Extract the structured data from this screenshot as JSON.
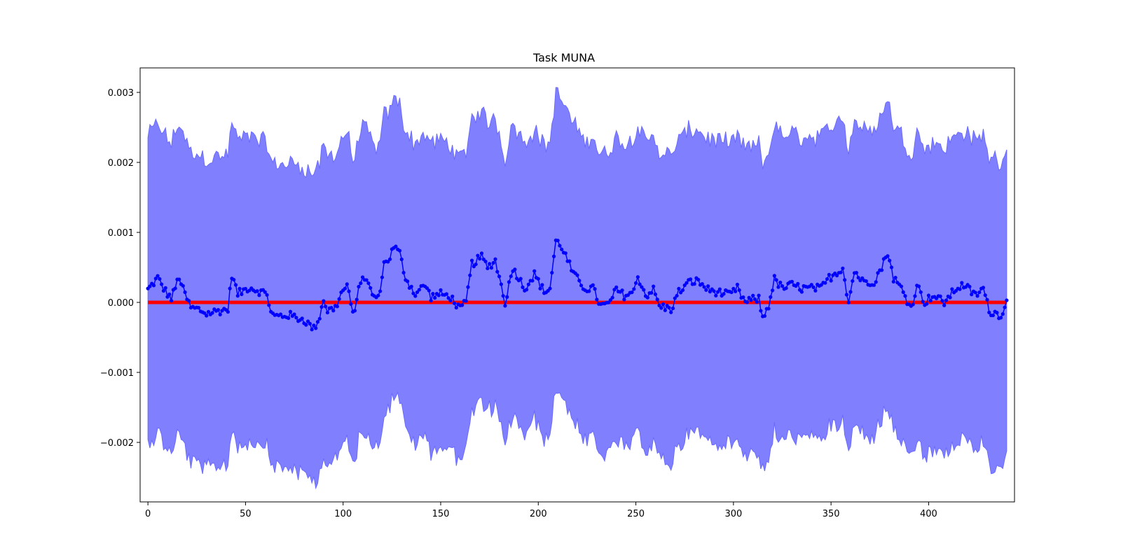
{
  "chart_data": {
    "type": "line",
    "title": "Task MUNA",
    "xlabel": "",
    "ylabel": "",
    "xlim": [
      -4,
      444
    ],
    "ylim": [
      -0.00285,
      0.00335
    ],
    "xticks": [
      0,
      50,
      100,
      150,
      200,
      250,
      300,
      350,
      400
    ],
    "xtick_labels": [
      "0",
      "50",
      "100",
      "150",
      "200",
      "250",
      "300",
      "350",
      "400"
    ],
    "yticks": [
      -0.002,
      -0.001,
      0.0,
      0.001,
      0.002,
      0.003
    ],
    "ytick_labels": [
      "−0.002",
      "−0.001",
      "0.000",
      "0.001",
      "0.002",
      "0.003"
    ],
    "grid": false,
    "colors": {
      "mean_line": "#0000ff",
      "band": "#8080ff",
      "band_edge": "#6a6aff",
      "zero_line": "#ff0000"
    },
    "zero_line": {
      "y": 0.0
    },
    "n_points": 441,
    "mean_keypoints": [
      [
        0,
        0.00018
      ],
      [
        5,
        0.00035
      ],
      [
        8,
        0.0002
      ],
      [
        12,
        5e-05
      ],
      [
        16,
        0.00037
      ],
      [
        18,
        0.00018
      ],
      [
        22,
        -8e-05
      ],
      [
        26,
        -0.0001
      ],
      [
        30,
        -0.00016
      ],
      [
        36,
        -0.00012
      ],
      [
        41,
        -0.0001
      ],
      [
        43,
        0.0004
      ],
      [
        46,
        0.00012
      ],
      [
        52,
        0.00022
      ],
      [
        58,
        0.00015
      ],
      [
        61,
        0.00013
      ],
      [
        63,
        -0.00015
      ],
      [
        65,
        -0.0002
      ],
      [
        72,
        -0.00018
      ],
      [
        80,
        -0.00025
      ],
      [
        85,
        -0.00038
      ],
      [
        88,
        -0.0002
      ],
      [
        90,
        5e-05
      ],
      [
        92,
        -0.00012
      ],
      [
        96,
        -8e-05
      ],
      [
        99,
        0.00012
      ],
      [
        102,
        0.00025
      ],
      [
        105,
        -0.00018
      ],
      [
        110,
        0.0004
      ],
      [
        116,
        8e-05
      ],
      [
        118,
        5e-05
      ],
      [
        121,
        0.00055
      ],
      [
        124,
        0.00065
      ],
      [
        126,
        0.0008
      ],
      [
        129,
        0.0007
      ],
      [
        132,
        0.00035
      ],
      [
        137,
        0.00012
      ],
      [
        142,
        0.00025
      ],
      [
        145,
        8e-05
      ],
      [
        150,
        0.00012
      ],
      [
        155,
        8e-05
      ],
      [
        160,
        -0.0001
      ],
      [
        163,
        0.0
      ],
      [
        166,
        0.00055
      ],
      [
        171,
        0.00065
      ],
      [
        174,
        0.0005
      ],
      [
        178,
        0.0006
      ],
      [
        183,
        0.0
      ],
      [
        187,
        0.0005
      ],
      [
        193,
        0.0002
      ],
      [
        198,
        0.0004
      ],
      [
        203,
        0.00015
      ],
      [
        206,
        0.0002
      ],
      [
        209,
        0.00088
      ],
      [
        212,
        0.0008
      ],
      [
        218,
        0.0004
      ],
      [
        224,
        0.0002
      ],
      [
        228,
        0.0002
      ],
      [
        232,
        -5e-05
      ],
      [
        236,
        -3e-05
      ],
      [
        240,
        0.00018
      ],
      [
        244,
        0.0001
      ],
      [
        249,
        0.00015
      ],
      [
        251,
        0.00038
      ],
      [
        255,
        0.0001
      ],
      [
        259,
        0.00018
      ],
      [
        262,
        -5e-05
      ],
      [
        268,
        -0.0001
      ],
      [
        272,
        0.00015
      ],
      [
        278,
        0.0003
      ],
      [
        282,
        0.0003
      ],
      [
        287,
        0.00018
      ],
      [
        292,
        0.00015
      ],
      [
        298,
        0.0001
      ],
      [
        302,
        0.0002
      ],
      [
        306,
        0.0
      ],
      [
        311,
        5e-05
      ],
      [
        313,
        5e-05
      ],
      [
        315,
        -0.00023
      ],
      [
        318,
        -4e-05
      ],
      [
        321,
        0.00033
      ],
      [
        325,
        0.0002
      ],
      [
        330,
        0.00025
      ],
      [
        335,
        0.0002
      ],
      [
        340,
        0.0002
      ],
      [
        345,
        0.0002
      ],
      [
        349,
        0.00035
      ],
      [
        354,
        0.00045
      ],
      [
        356,
        0.0005
      ],
      [
        359,
        0.0
      ],
      [
        362,
        0.00045
      ],
      [
        366,
        0.0003
      ],
      [
        372,
        0.0003
      ],
      [
        376,
        0.0005
      ],
      [
        379,
        0.00072
      ],
      [
        382,
        0.00035
      ],
      [
        386,
        0.0002
      ],
      [
        391,
        -8e-05
      ],
      [
        394,
        0.00025
      ],
      [
        398,
        0.0
      ],
      [
        402,
        0.0001
      ],
      [
        408,
        0.0
      ],
      [
        414,
        0.0002
      ],
      [
        418,
        0.00025
      ],
      [
        424,
        0.0001
      ],
      [
        428,
        0.0002
      ],
      [
        431,
        -0.00012
      ],
      [
        437,
        -0.00018
      ],
      [
        440,
        0.0
      ]
    ],
    "band_half_width_keypoints": [
      [
        0,
        0.0022
      ],
      [
        20,
        0.00222
      ],
      [
        40,
        0.0022
      ],
      [
        60,
        0.00215
      ],
      [
        85,
        0.0022
      ],
      [
        100,
        0.0022
      ],
      [
        126,
        0.0021
      ],
      [
        150,
        0.0022
      ],
      [
        175,
        0.00205
      ],
      [
        209,
        0.0021
      ],
      [
        230,
        0.00215
      ],
      [
        260,
        0.0022
      ],
      [
        290,
        0.00215
      ],
      [
        315,
        0.0022
      ],
      [
        340,
        0.00215
      ],
      [
        370,
        0.00218
      ],
      [
        400,
        0.0022
      ],
      [
        440,
        0.0022
      ]
    ]
  }
}
